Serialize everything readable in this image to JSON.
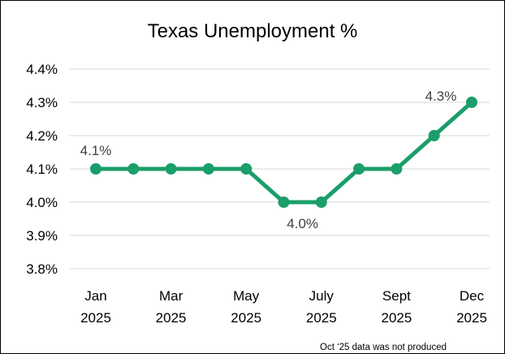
{
  "chart_data": {
    "type": "line",
    "title": "Texas Unemployment %",
    "xlabel": "",
    "ylabel": "",
    "y_ticks": [
      "3.8%",
      "3.9%",
      "4.0%",
      "4.1%",
      "4.2%",
      "4.3%",
      "4.4%"
    ],
    "ylim": [
      3.8,
      4.4
    ],
    "grid": true,
    "x_tick_labels": [
      {
        "line1": "Jan",
        "line2": "2025"
      },
      {
        "line1": "Mar",
        "line2": "2025"
      },
      {
        "line1": "May",
        "line2": "2025"
      },
      {
        "line1": "July",
        "line2": "2025"
      },
      {
        "line1": "Sept",
        "line2": "2025"
      },
      {
        "line1": "Dec",
        "line2": "2025"
      }
    ],
    "series": [
      {
        "values": [
          4.1,
          4.1,
          4.1,
          4.1,
          4.1,
          4.0,
          4.0,
          4.1,
          4.1,
          4.2,
          4.3
        ],
        "color": "#1A9E6A"
      }
    ],
    "data_labels": [
      "4.1%",
      "4.0%",
      "4.3%"
    ],
    "footnote": "Oct ‘25 data was not produced"
  }
}
